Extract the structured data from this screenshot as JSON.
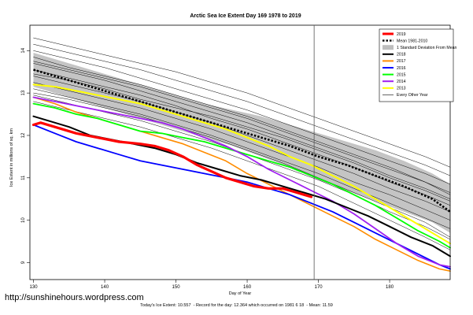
{
  "source_url": "http://sunshinehours.wordpress.com",
  "footer": {
    "todays_extent": "Today's Ice Extent: 10.557",
    "record_text": "Record for the day: 12.364 which occurred on 1981 6 18",
    "mean_text": "Mean: 11.59"
  },
  "chart_data": {
    "type": "line",
    "title": "Arctic Sea Ice Extent Day 169 1978 to 2019",
    "xlabel": "Day of Year",
    "ylabel": "Ice Extent in millions of sq. km",
    "xlim": [
      129.5,
      188.5
    ],
    "ylim": [
      8.6,
      14.6
    ],
    "x_ticks": [
      130,
      140,
      150,
      160,
      170,
      180
    ],
    "y_ticks": [
      9,
      10,
      11,
      12,
      13,
      14
    ],
    "grid": false,
    "reference_line_x": 169.4,
    "legend_position": "top-right",
    "legend": [
      {
        "label": "2019",
        "color": "#ff0000"
      },
      {
        "label": "Mean 1981-2010",
        "color": "#000000"
      },
      {
        "label": "1 Standard Deviation From Mean",
        "color": "#bebebe"
      },
      {
        "label": "2018",
        "color": "#000000"
      },
      {
        "label": "2017",
        "color": "#ff8c00"
      },
      {
        "label": "2016",
        "color": "#0000ff"
      },
      {
        "label": "2015",
        "color": "#00ff00"
      },
      {
        "label": "2014",
        "color": "#a020f0"
      },
      {
        "label": "2013",
        "color": "#ffff00"
      },
      {
        "label": "Every Other Year",
        "color": "#000000"
      }
    ],
    "mean_1981_2010": {
      "x": [
        130,
        134,
        138,
        142,
        146,
        150,
        154,
        158,
        162,
        166,
        170,
        174,
        178,
        182,
        186,
        188.5
      ],
      "y": [
        13.55,
        13.35,
        13.15,
        12.95,
        12.75,
        12.55,
        12.35,
        12.15,
        11.95,
        11.75,
        11.5,
        11.3,
        11.05,
        10.8,
        10.5,
        10.2
      ]
    },
    "std_band": {
      "x": [
        130,
        134,
        138,
        142,
        146,
        150,
        154,
        158,
        162,
        166,
        170,
        174,
        178,
        182,
        186,
        188.5
      ],
      "upper": [
        13.95,
        13.75,
        13.55,
        13.35,
        13.15,
        12.95,
        12.75,
        12.6,
        12.45,
        12.25,
        12.05,
        11.85,
        11.65,
        11.4,
        11.1,
        10.85
      ],
      "lower": [
        13.15,
        12.95,
        12.75,
        12.55,
        12.35,
        12.15,
        11.95,
        11.75,
        11.5,
        11.25,
        10.95,
        10.7,
        10.45,
        10.2,
        9.95,
        9.7
      ]
    },
    "series": [
      {
        "name": "2019",
        "color": "#ff0000",
        "width": 3.2,
        "x": [
          130,
          131,
          133,
          136,
          139,
          142,
          145,
          147,
          149,
          151,
          153,
          155,
          157,
          159,
          161,
          163,
          165,
          166,
          167,
          168,
          169
        ],
        "y": [
          12.25,
          12.3,
          12.2,
          12.05,
          11.95,
          11.85,
          11.8,
          11.75,
          11.65,
          11.5,
          11.3,
          11.15,
          11.0,
          10.9,
          10.8,
          10.75,
          10.75,
          10.7,
          10.65,
          10.6,
          10.55
        ]
      },
      {
        "name": "2018",
        "color": "#000000",
        "width": 2,
        "x": [
          130,
          132,
          135,
          138,
          141,
          144,
          147,
          150,
          153,
          156,
          159,
          162,
          165,
          168,
          171,
          174,
          177,
          180,
          183,
          186,
          188.5
        ],
        "y": [
          12.45,
          12.35,
          12.2,
          12.0,
          11.9,
          11.8,
          11.7,
          11.55,
          11.35,
          11.2,
          11.05,
          10.95,
          10.8,
          10.65,
          10.5,
          10.3,
          10.1,
          9.85,
          9.6,
          9.4,
          9.15
        ]
      },
      {
        "name": "2017",
        "color": "#ff8c00",
        "width": 1.6,
        "x": [
          130,
          133,
          136,
          139,
          142,
          145,
          148,
          151,
          154,
          157,
          160,
          163,
          166,
          169,
          172,
          175,
          178,
          181,
          184,
          187,
          188.5
        ],
        "y": [
          12.9,
          12.75,
          12.55,
          12.4,
          12.25,
          12.1,
          11.95,
          11.8,
          11.6,
          11.4,
          11.1,
          10.85,
          10.6,
          10.35,
          10.1,
          9.85,
          9.55,
          9.3,
          9.05,
          8.85,
          8.8
        ]
      },
      {
        "name": "2016",
        "color": "#0000ff",
        "width": 1.8,
        "x": [
          130,
          133,
          136,
          139,
          142,
          145,
          148,
          151,
          154,
          157,
          160,
          163,
          166,
          169,
          172,
          175,
          178,
          181,
          184,
          187,
          188.5
        ],
        "y": [
          12.25,
          12.05,
          11.85,
          11.7,
          11.55,
          11.4,
          11.3,
          11.2,
          11.1,
          11.0,
          10.9,
          10.75,
          10.6,
          10.4,
          10.2,
          9.95,
          9.7,
          9.45,
          9.2,
          8.95,
          8.85
        ]
      },
      {
        "name": "2015",
        "color": "#00ff00",
        "width": 1.8,
        "x": [
          130,
          133,
          136,
          139,
          142,
          145,
          148,
          151,
          154,
          157,
          160,
          163,
          166,
          169,
          172,
          175,
          178,
          181,
          184,
          187,
          188.5
        ],
        "y": [
          12.75,
          12.65,
          12.5,
          12.4,
          12.25,
          12.1,
          12.05,
          11.95,
          11.85,
          11.7,
          11.55,
          11.4,
          11.25,
          11.05,
          10.85,
          10.6,
          10.35,
          10.05,
          9.75,
          9.5,
          9.35
        ]
      },
      {
        "name": "2014",
        "color": "#a020f0",
        "width": 1.8,
        "x": [
          130,
          133,
          136,
          139,
          142,
          145,
          148,
          151,
          154,
          157,
          160,
          163,
          166,
          169,
          172,
          175,
          178,
          181,
          184,
          187,
          188.5
        ],
        "y": [
          12.9,
          12.8,
          12.7,
          12.6,
          12.5,
          12.4,
          12.3,
          12.15,
          11.95,
          11.75,
          11.5,
          11.2,
          10.95,
          10.7,
          10.45,
          10.15,
          9.8,
          9.45,
          9.15,
          8.95,
          8.9
        ]
      },
      {
        "name": "2013",
        "color": "#ffff00",
        "width": 2,
        "x": [
          130,
          133,
          136,
          139,
          142,
          145,
          148,
          151,
          154,
          157,
          160,
          163,
          166,
          169,
          172,
          175,
          178,
          181,
          184,
          187,
          188.5
        ],
        "y": [
          13.2,
          13.15,
          13.05,
          12.95,
          12.85,
          12.75,
          12.6,
          12.45,
          12.3,
          12.15,
          11.95,
          11.75,
          11.5,
          11.3,
          11.05,
          10.8,
          10.5,
          10.2,
          9.9,
          9.6,
          9.45
        ]
      },
      {
        "name": "Every Other Year",
        "color": "#000000",
        "width": 0.5,
        "x": [
          130,
          135,
          140,
          145,
          150,
          155,
          160,
          165,
          170,
          175,
          180,
          185,
          188.5
        ],
        "y": [
          14.3,
          14.1,
          13.9,
          13.7,
          13.5,
          13.25,
          13.0,
          12.7,
          12.4,
          12.1,
          11.8,
          11.5,
          11.25
        ]
      },
      {
        "name": "",
        "color": "#000000",
        "width": 0.5,
        "x": [
          130,
          135,
          140,
          145,
          150,
          155,
          160,
          165,
          170,
          175,
          180,
          185,
          188.5
        ],
        "y": [
          14.15,
          13.95,
          13.75,
          13.55,
          13.3,
          13.05,
          12.8,
          12.5,
          12.2,
          11.9,
          11.6,
          11.3,
          11.05
        ]
      },
      {
        "name": "",
        "color": "#000000",
        "width": 0.5,
        "x": [
          130,
          135,
          140,
          145,
          150,
          155,
          160,
          165,
          170,
          175,
          180,
          185,
          188.5
        ],
        "y": [
          14.0,
          13.8,
          13.6,
          13.35,
          13.1,
          12.85,
          12.6,
          12.3,
          12.0,
          11.7,
          11.4,
          11.1,
          10.85
        ]
      },
      {
        "name": "",
        "color": "#000000",
        "width": 0.5,
        "x": [
          130,
          135,
          140,
          145,
          150,
          155,
          160,
          165,
          170,
          175,
          180,
          185,
          188.5
        ],
        "y": [
          13.85,
          13.6,
          13.4,
          13.2,
          12.95,
          12.7,
          12.45,
          12.15,
          11.85,
          11.55,
          11.25,
          10.9,
          10.65
        ]
      },
      {
        "name": "",
        "color": "#000000",
        "width": 0.5,
        "x": [
          130,
          135,
          140,
          145,
          150,
          155,
          160,
          165,
          170,
          175,
          180,
          185,
          188.5
        ],
        "y": [
          13.7,
          13.5,
          13.3,
          13.05,
          12.8,
          12.55,
          12.3,
          12.0,
          11.7,
          11.4,
          11.05,
          10.75,
          10.5
        ]
      },
      {
        "name": "",
        "color": "#000000",
        "width": 0.5,
        "x": [
          130,
          135,
          140,
          145,
          150,
          155,
          160,
          165,
          170,
          175,
          180,
          185,
          188.5
        ],
        "y": [
          13.55,
          13.35,
          13.15,
          12.95,
          12.7,
          12.4,
          12.15,
          11.85,
          11.55,
          11.25,
          10.9,
          10.6,
          10.35
        ]
      },
      {
        "name": "",
        "color": "#000000",
        "width": 0.5,
        "x": [
          130,
          135,
          140,
          145,
          150,
          155,
          160,
          165,
          170,
          175,
          180,
          185,
          188.5
        ],
        "y": [
          13.4,
          13.2,
          13.0,
          12.8,
          12.55,
          12.3,
          12.0,
          11.7,
          11.4,
          11.1,
          10.75,
          10.45,
          10.2
        ]
      },
      {
        "name": "",
        "color": "#000000",
        "width": 0.5,
        "x": [
          130,
          135,
          140,
          145,
          150,
          155,
          160,
          165,
          170,
          175,
          180,
          185,
          188.5
        ],
        "y": [
          13.25,
          13.05,
          12.85,
          12.65,
          12.4,
          12.15,
          11.85,
          11.55,
          11.25,
          10.9,
          10.6,
          10.25,
          10.0
        ]
      },
      {
        "name": "",
        "color": "#000000",
        "width": 0.5,
        "x": [
          130,
          135,
          140,
          145,
          150,
          155,
          160,
          165,
          170,
          175,
          180,
          185,
          188.5
        ],
        "y": [
          13.1,
          12.9,
          12.7,
          12.5,
          12.25,
          12.0,
          11.7,
          11.4,
          11.1,
          10.75,
          10.4,
          10.05,
          9.8
        ]
      },
      {
        "name": "",
        "color": "#000000",
        "width": 0.5,
        "x": [
          130,
          135,
          140,
          145,
          150,
          155,
          160,
          165,
          170,
          175,
          180,
          185,
          188.5
        ],
        "y": [
          12.95,
          12.75,
          12.55,
          12.35,
          12.1,
          11.85,
          11.55,
          11.25,
          10.95,
          10.6,
          10.2,
          9.85,
          9.55
        ]
      },
      {
        "name": "",
        "color": "#000000",
        "width": 0.5,
        "x": [
          130,
          135,
          140,
          145,
          150,
          155,
          160,
          165,
          170,
          175,
          180,
          185,
          188.5
        ],
        "y": [
          12.8,
          12.6,
          12.4,
          12.2,
          11.95,
          11.7,
          11.4,
          11.1,
          10.8,
          10.4,
          10.0,
          9.6,
          9.3
        ]
      },
      {
        "name": "",
        "color": "#000000",
        "width": 0.5,
        "x": [
          130,
          135,
          140,
          145,
          150,
          155,
          160,
          165,
          170,
          175,
          180,
          185,
          188.5
        ],
        "y": [
          13.45,
          13.3,
          13.1,
          12.85,
          12.65,
          12.45,
          12.2,
          11.95,
          11.65,
          11.35,
          11.0,
          10.7,
          10.45
        ]
      },
      {
        "name": "",
        "color": "#000000",
        "width": 0.5,
        "x": [
          130,
          135,
          140,
          145,
          150,
          155,
          160,
          165,
          170,
          175,
          180,
          185,
          188.5
        ],
        "y": [
          13.75,
          13.55,
          13.35,
          13.15,
          12.9,
          12.65,
          12.4,
          12.1,
          11.8,
          11.5,
          11.2,
          10.9,
          10.6
        ]
      },
      {
        "name": "",
        "color": "#000000",
        "width": 0.5,
        "x": [
          130,
          135,
          140,
          145,
          150,
          155,
          160,
          165,
          170,
          175,
          180,
          185,
          188.5
        ],
        "y": [
          13.0,
          12.85,
          12.65,
          12.45,
          12.2,
          11.95,
          11.65,
          11.35,
          11.0,
          10.65,
          10.3,
          9.95,
          9.6
        ]
      }
    ]
  }
}
